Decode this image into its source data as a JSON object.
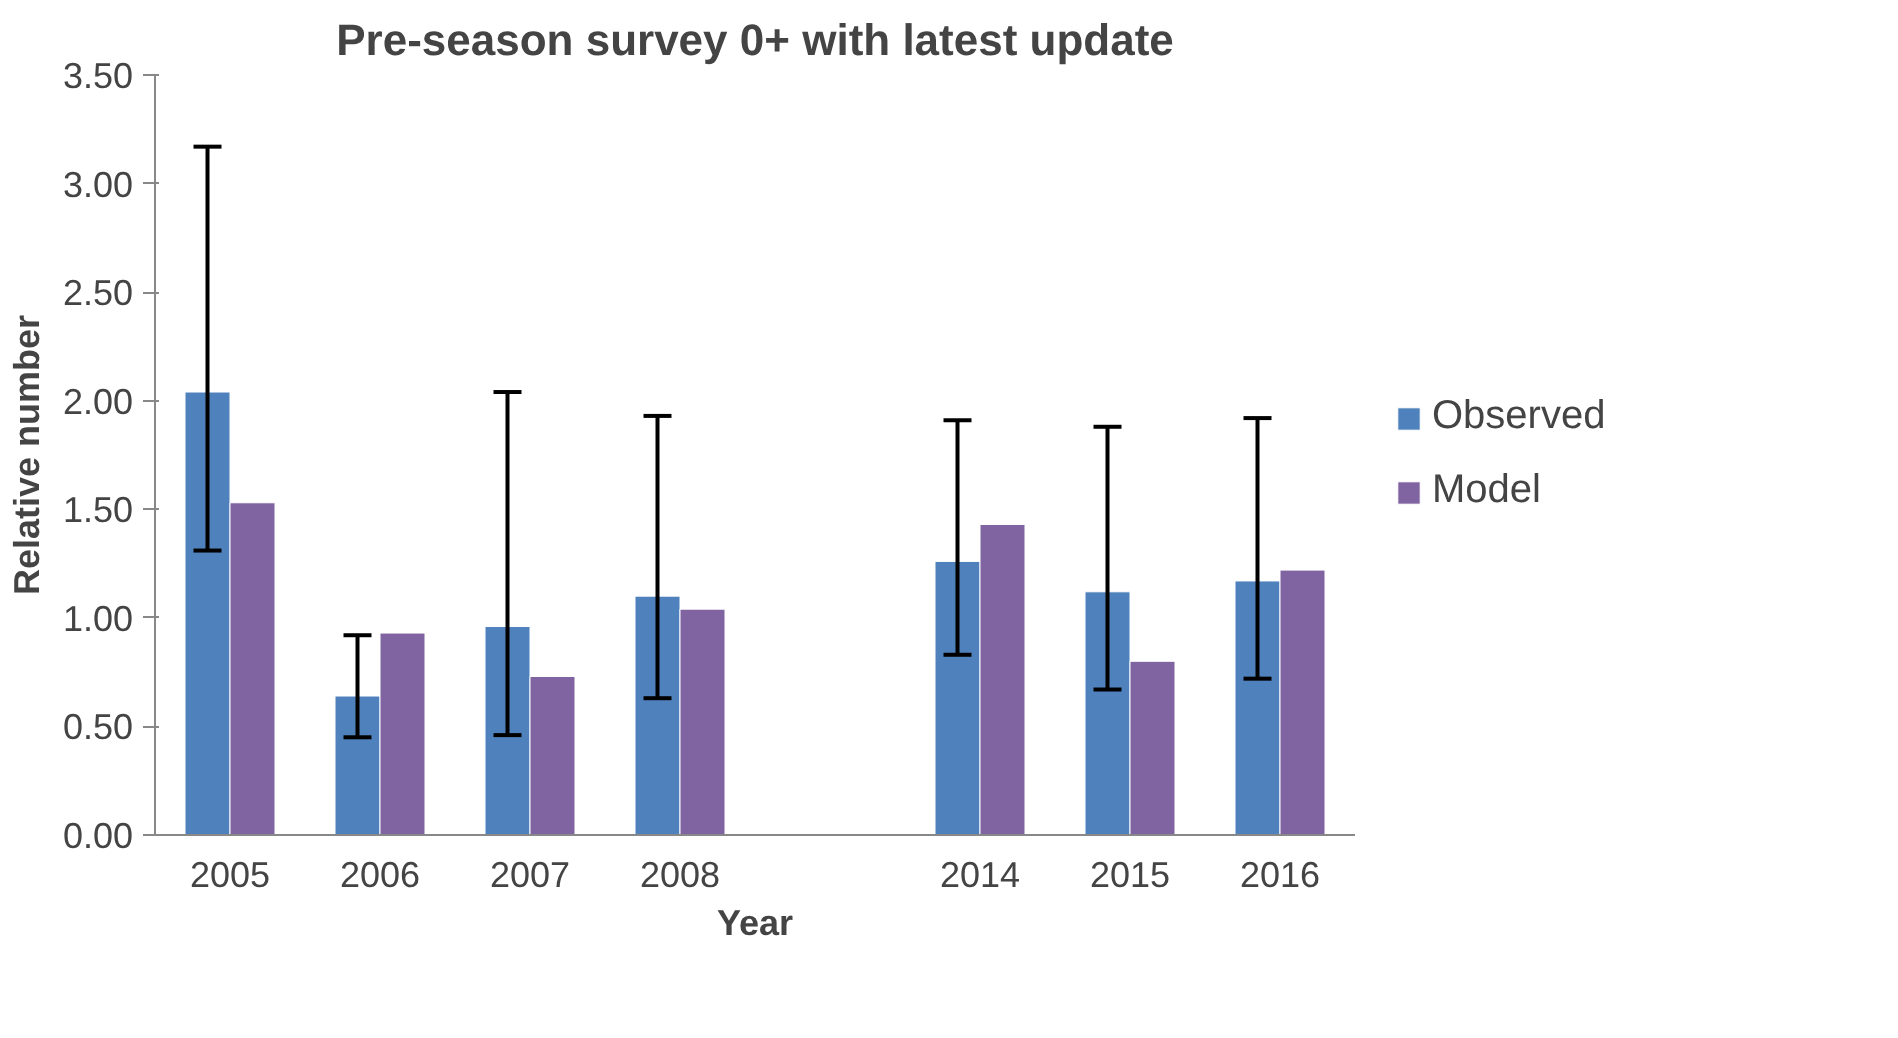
{
  "chart_data": {
    "type": "bar",
    "title": "Pre-season survey 0+ with latest update",
    "xlabel": "Year",
    "ylabel": "Relative number",
    "categories": [
      "2005",
      "2006",
      "2007",
      "2008",
      null,
      "2014",
      "2015",
      "2016"
    ],
    "series": [
      {
        "name": "Observed",
        "color": "#4f81bd",
        "values": [
          2.04,
          0.64,
          0.96,
          1.1,
          null,
          1.26,
          1.12,
          1.17
        ],
        "errors": [
          [
            1.31,
            3.17
          ],
          [
            0.45,
            0.92
          ],
          [
            0.46,
            2.04
          ],
          [
            0.63,
            1.93
          ],
          null,
          [
            0.83,
            1.91
          ],
          [
            0.67,
            1.88
          ],
          [
            0.72,
            1.92
          ]
        ]
      },
      {
        "name": "Model",
        "color": "#8064a2",
        "values": [
          1.53,
          0.93,
          0.73,
          1.04,
          null,
          1.43,
          0.8,
          1.22
        ]
      }
    ],
    "ylim": [
      0,
      3.5
    ],
    "yticks": [
      {
        "value": 0,
        "label": "0.00"
      },
      {
        "value": 0.5,
        "label": "0.50"
      },
      {
        "value": 1,
        "label": "1.00"
      },
      {
        "value": 1.5,
        "label": "1.50"
      },
      {
        "value": 2,
        "label": "2.00"
      },
      {
        "value": 2.5,
        "label": "2.50"
      },
      {
        "value": 3,
        "label": "3.00"
      },
      {
        "value": 3.5,
        "label": "3.50"
      }
    ],
    "grid": false,
    "legend": "right"
  }
}
